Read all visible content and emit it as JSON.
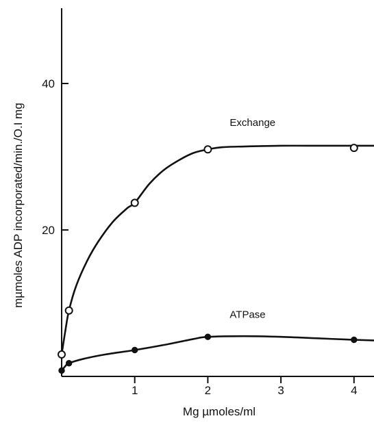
{
  "chart_data": {
    "type": "line",
    "title": "",
    "xlabel": "Mg  µmoles/ml",
    "ylabel": "mµmoles ADP incorporated/min./O.I mg",
    "xlim": [
      0,
      4.3
    ],
    "ylim": [
      0,
      50
    ],
    "grid": false,
    "legend": "none",
    "x_ticks": [
      {
        "value": 1,
        "label": "1"
      },
      {
        "value": 2,
        "label": "2"
      },
      {
        "value": 3,
        "label": "3"
      },
      {
        "value": 4,
        "label": "4"
      }
    ],
    "y_ticks": [
      {
        "value": 20,
        "label": "20"
      },
      {
        "value": 40,
        "label": "40"
      }
    ],
    "series": [
      {
        "name": "Exchange",
        "marker": "open-circle",
        "color": "#111111",
        "points": [
          [
            0,
            3
          ],
          [
            0.1,
            9
          ],
          [
            1,
            23.7
          ],
          [
            2,
            31
          ],
          [
            4,
            31.2
          ]
        ],
        "curve_x": [
          0,
          0.05,
          0.1,
          0.2,
          0.35,
          0.5,
          0.7,
          0.9,
          1,
          1.2,
          1.4,
          1.6,
          1.8,
          2,
          2.2,
          2.5,
          3,
          3.5,
          4,
          4.3
        ],
        "curve_y": [
          3,
          6.2,
          9,
          12.4,
          15.8,
          18.4,
          21.1,
          23,
          23.7,
          26.3,
          28.2,
          29.5,
          30.5,
          31,
          31.3,
          31.4,
          31.5,
          31.5,
          31.5,
          31.5
        ]
      },
      {
        "name": "ATPase",
        "marker": "filled-circle",
        "color": "#111111",
        "points": [
          [
            0,
            0.8
          ],
          [
            0.1,
            1.8
          ],
          [
            1,
            3.6
          ],
          [
            2,
            5.4
          ],
          [
            4,
            5
          ]
        ],
        "curve_x": [
          0,
          0.05,
          0.1,
          0.3,
          0.6,
          1,
          1.4,
          1.8,
          2,
          2.5,
          3,
          3.5,
          4,
          4.3
        ],
        "curve_y": [
          0.8,
          1.4,
          1.8,
          2.4,
          3,
          3.6,
          4.3,
          5.1,
          5.4,
          5.5,
          5.4,
          5.2,
          5,
          4.9
        ]
      }
    ]
  }
}
